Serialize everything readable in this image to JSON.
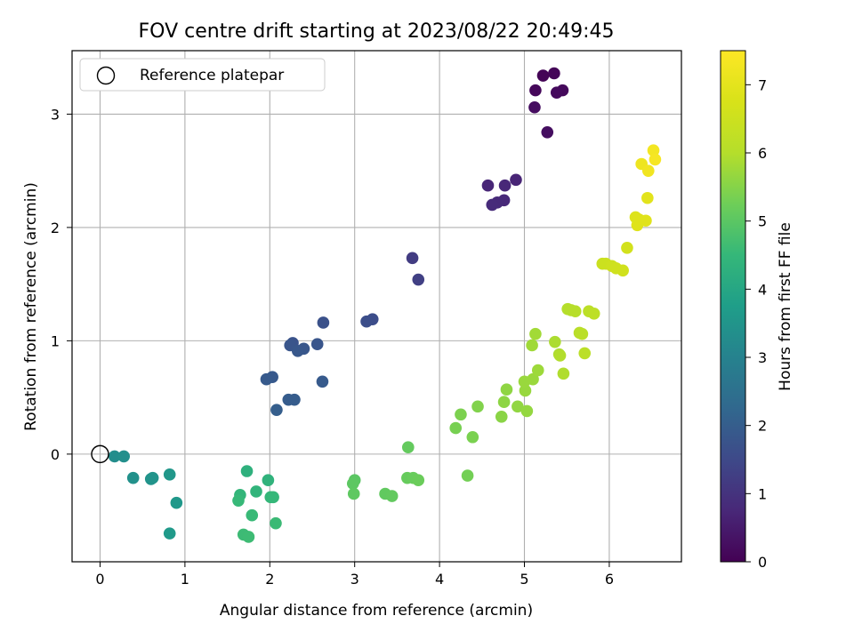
{
  "chart_data": {
    "type": "scatter",
    "title": "FOV centre drift starting at 2023/08/22 20:49:45",
    "xlabel": "Angular distance from reference (arcmin)",
    "ylabel": "Rotation from reference (arcmin)",
    "xlim": [
      -0.33,
      6.85
    ],
    "ylim": [
      -0.95,
      3.56
    ],
    "xticks": [
      0,
      1,
      2,
      3,
      4,
      5,
      6
    ],
    "yticks": [
      0,
      1,
      2,
      3
    ],
    "grid": true,
    "legend": {
      "placement": "top-left",
      "label": "Reference platepar"
    },
    "reference": {
      "x": 0,
      "y": 0
    },
    "colorbar": {
      "label": "Hours from first FF file",
      "range": [
        0,
        7.5
      ],
      "ticks": [
        0,
        1,
        2,
        3,
        4,
        5,
        6,
        7
      ],
      "colormap": "viridis"
    },
    "points": [
      {
        "x": 5.22,
        "y": 3.34,
        "h": 0.05
      },
      {
        "x": 5.35,
        "y": 3.36,
        "h": 0.08
      },
      {
        "x": 5.13,
        "y": 3.21,
        "h": 0.12
      },
      {
        "x": 5.45,
        "y": 3.21,
        "h": 0.15
      },
      {
        "x": 5.38,
        "y": 3.19,
        "h": 0.18
      },
      {
        "x": 5.12,
        "y": 3.06,
        "h": 0.22
      },
      {
        "x": 5.27,
        "y": 2.84,
        "h": 0.25
      },
      {
        "x": 4.9,
        "y": 2.42,
        "h": 0.7
      },
      {
        "x": 4.57,
        "y": 2.37,
        "h": 0.72
      },
      {
        "x": 4.77,
        "y": 2.37,
        "h": 0.75
      },
      {
        "x": 4.76,
        "y": 2.24,
        "h": 0.78
      },
      {
        "x": 4.68,
        "y": 2.22,
        "h": 0.8
      },
      {
        "x": 4.62,
        "y": 2.2,
        "h": 0.82
      },
      {
        "x": 3.68,
        "y": 1.73,
        "h": 1.2
      },
      {
        "x": 3.75,
        "y": 1.54,
        "h": 1.3
      },
      {
        "x": 3.21,
        "y": 1.19,
        "h": 1.6
      },
      {
        "x": 3.14,
        "y": 1.17,
        "h": 1.62
      },
      {
        "x": 2.63,
        "y": 1.16,
        "h": 1.7
      },
      {
        "x": 2.27,
        "y": 0.98,
        "h": 1.75
      },
      {
        "x": 2.56,
        "y": 0.97,
        "h": 1.78
      },
      {
        "x": 2.24,
        "y": 0.96,
        "h": 1.8
      },
      {
        "x": 2.4,
        "y": 0.93,
        "h": 1.82
      },
      {
        "x": 2.33,
        "y": 0.91,
        "h": 1.85
      },
      {
        "x": 2.03,
        "y": 0.68,
        "h": 1.88
      },
      {
        "x": 1.96,
        "y": 0.66,
        "h": 1.9
      },
      {
        "x": 2.62,
        "y": 0.64,
        "h": 1.92
      },
      {
        "x": 2.22,
        "y": 0.48,
        "h": 1.95
      },
      {
        "x": 2.29,
        "y": 0.48,
        "h": 1.97
      },
      {
        "x": 2.08,
        "y": 0.39,
        "h": 2.0
      },
      {
        "x": 0.17,
        "y": -0.02,
        "h": 3.3
      },
      {
        "x": 0.28,
        "y": -0.02,
        "h": 3.35
      },
      {
        "x": 0.39,
        "y": -0.21,
        "h": 3.4
      },
      {
        "x": 0.6,
        "y": -0.22,
        "h": 3.45
      },
      {
        "x": 0.62,
        "y": -0.21,
        "h": 3.48
      },
      {
        "x": 0.82,
        "y": -0.18,
        "h": 3.55
      },
      {
        "x": 0.9,
        "y": -0.43,
        "h": 3.6
      },
      {
        "x": 0.82,
        "y": -0.7,
        "h": 3.65
      },
      {
        "x": 1.73,
        "y": -0.15,
        "h": 4.3
      },
      {
        "x": 1.98,
        "y": -0.23,
        "h": 4.35
      },
      {
        "x": 1.84,
        "y": -0.33,
        "h": 4.4
      },
      {
        "x": 1.65,
        "y": -0.36,
        "h": 4.45
      },
      {
        "x": 2.01,
        "y": -0.38,
        "h": 4.48
      },
      {
        "x": 2.04,
        "y": -0.38,
        "h": 4.5
      },
      {
        "x": 1.63,
        "y": -0.41,
        "h": 4.52
      },
      {
        "x": 1.79,
        "y": -0.54,
        "h": 4.55
      },
      {
        "x": 2.07,
        "y": -0.61,
        "h": 4.58
      },
      {
        "x": 1.69,
        "y": -0.71,
        "h": 4.6
      },
      {
        "x": 1.75,
        "y": -0.73,
        "h": 4.62
      },
      {
        "x": 3.0,
        "y": -0.23,
        "h": 5.0
      },
      {
        "x": 2.98,
        "y": -0.26,
        "h": 5.02
      },
      {
        "x": 2.99,
        "y": -0.35,
        "h": 5.05
      },
      {
        "x": 3.36,
        "y": -0.35,
        "h": 5.08
      },
      {
        "x": 3.44,
        "y": -0.37,
        "h": 5.1
      },
      {
        "x": 3.63,
        "y": 0.06,
        "h": 5.12
      },
      {
        "x": 3.62,
        "y": -0.21,
        "h": 5.15
      },
      {
        "x": 3.69,
        "y": -0.21,
        "h": 5.17
      },
      {
        "x": 3.75,
        "y": -0.23,
        "h": 5.2
      },
      {
        "x": 4.33,
        "y": -0.19,
        "h": 5.3
      },
      {
        "x": 4.19,
        "y": 0.23,
        "h": 5.35
      },
      {
        "x": 4.39,
        "y": 0.15,
        "h": 5.38
      },
      {
        "x": 4.25,
        "y": 0.35,
        "h": 5.4
      },
      {
        "x": 4.45,
        "y": 0.42,
        "h": 5.45
      },
      {
        "x": 4.73,
        "y": 0.33,
        "h": 5.55
      },
      {
        "x": 4.76,
        "y": 0.46,
        "h": 5.58
      },
      {
        "x": 4.79,
        "y": 0.57,
        "h": 5.6
      },
      {
        "x": 4.92,
        "y": 0.42,
        "h": 5.62
      },
      {
        "x": 5.03,
        "y": 0.38,
        "h": 5.65
      },
      {
        "x": 5.01,
        "y": 0.56,
        "h": 5.68
      },
      {
        "x": 5.0,
        "y": 0.64,
        "h": 5.7
      },
      {
        "x": 5.1,
        "y": 0.66,
        "h": 5.72
      },
      {
        "x": 5.16,
        "y": 0.74,
        "h": 5.75
      },
      {
        "x": 5.09,
        "y": 0.96,
        "h": 5.78
      },
      {
        "x": 5.13,
        "y": 1.06,
        "h": 5.8
      },
      {
        "x": 5.36,
        "y": 0.99,
        "h": 5.9
      },
      {
        "x": 5.41,
        "y": 0.88,
        "h": 5.92
      },
      {
        "x": 5.46,
        "y": 0.71,
        "h": 5.95
      },
      {
        "x": 5.42,
        "y": 0.87,
        "h": 5.97
      },
      {
        "x": 5.51,
        "y": 1.28,
        "h": 6.0
      },
      {
        "x": 5.55,
        "y": 1.27,
        "h": 6.02
      },
      {
        "x": 5.6,
        "y": 1.26,
        "h": 6.05
      },
      {
        "x": 5.65,
        "y": 1.07,
        "h": 6.08
      },
      {
        "x": 5.68,
        "y": 1.06,
        "h": 6.1
      },
      {
        "x": 5.71,
        "y": 0.89,
        "h": 6.12
      },
      {
        "x": 5.76,
        "y": 1.26,
        "h": 6.15
      },
      {
        "x": 5.82,
        "y": 1.24,
        "h": 6.18
      },
      {
        "x": 5.92,
        "y": 1.68,
        "h": 6.45
      },
      {
        "x": 5.96,
        "y": 1.68,
        "h": 6.48
      },
      {
        "x": 6.03,
        "y": 1.66,
        "h": 6.52
      },
      {
        "x": 6.08,
        "y": 1.64,
        "h": 6.55
      },
      {
        "x": 6.16,
        "y": 1.62,
        "h": 6.58
      },
      {
        "x": 6.21,
        "y": 1.82,
        "h": 6.62
      },
      {
        "x": 6.31,
        "y": 2.09,
        "h": 6.85
      },
      {
        "x": 6.35,
        "y": 2.07,
        "h": 6.88
      },
      {
        "x": 6.33,
        "y": 2.02,
        "h": 6.9
      },
      {
        "x": 6.43,
        "y": 2.06,
        "h": 6.92
      },
      {
        "x": 6.45,
        "y": 2.26,
        "h": 6.95
      },
      {
        "x": 6.38,
        "y": 2.56,
        "h": 7.2
      },
      {
        "x": 6.46,
        "y": 2.5,
        "h": 7.25
      },
      {
        "x": 6.52,
        "y": 2.68,
        "h": 7.3
      },
      {
        "x": 6.54,
        "y": 2.6,
        "h": 7.35
      }
    ]
  }
}
